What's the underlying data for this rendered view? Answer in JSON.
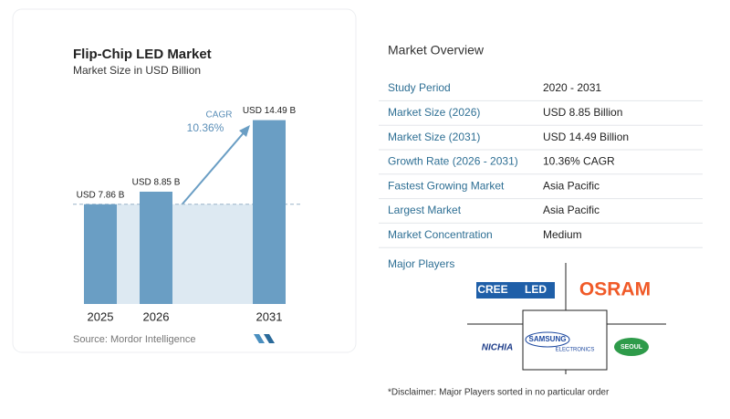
{
  "chart_data": {
    "type": "bar",
    "title": "Flip-Chip LED Market",
    "subtitle": "Market Size in USD Billion",
    "categories": [
      "2025",
      "2026",
      "2031"
    ],
    "values": [
      7.86,
      8.85,
      14.49
    ],
    "value_labels": [
      "USD 7.86 B",
      "USD 8.85 B",
      "USD 14.49 B"
    ],
    "color": "#6a9ec4",
    "annotation": {
      "label": "CAGR",
      "value": "10.36%"
    },
    "source": "Source:  Mordor Intelligence"
  },
  "overview": {
    "title": "Market Overview",
    "rows": [
      [
        "Study Period",
        "2020 - 2031"
      ],
      [
        "Market Size (2026)",
        "USD 8.85 Billion"
      ],
      [
        "Market Size (2031)",
        "USD 14.49 Billion"
      ],
      [
        "Growth Rate (2026 - 2031)",
        "10.36% CAGR"
      ],
      [
        "Fastest Growing Market",
        "Asia Pacific"
      ],
      [
        "Largest Market",
        "Asia Pacific"
      ],
      [
        "Market Concentration",
        "Medium"
      ]
    ]
  },
  "players": {
    "title": "Major Players",
    "logos": [
      "CREE",
      "LED",
      "OSRAM",
      "NICHIA",
      "SAMSUNG",
      "ELECTRONICS",
      "SEOUL"
    ]
  },
  "disclaimer": "*Disclaimer: Major Players sorted in no particular order"
}
